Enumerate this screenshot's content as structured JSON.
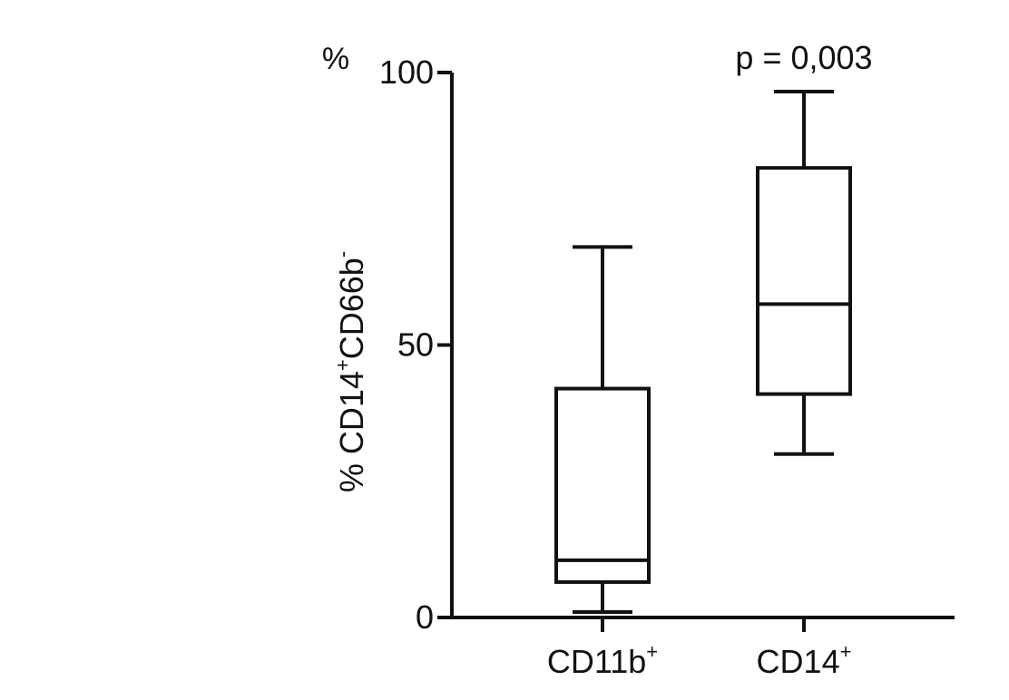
{
  "chart_data": {
    "type": "box",
    "categories": [
      "CD11b",
      "CD14"
    ],
    "category_superscripts": [
      "+",
      "+"
    ],
    "ylabel_parts": [
      {
        "text": "% CD14",
        "sup": false
      },
      {
        "text": "+",
        "sup": true
      },
      {
        "text": "CD66b",
        "sup": false
      },
      {
        "text": "-",
        "sup": true
      }
    ],
    "unit_label": "%",
    "ylim": [
      0,
      100
    ],
    "yticks": [
      0,
      50,
      100
    ],
    "ytick_labels": [
      "0",
      "50",
      "100"
    ],
    "boxes": [
      {
        "min": 1,
        "q1": 6.5,
        "median": 10.5,
        "q3": 42,
        "max": 68
      },
      {
        "min": 30,
        "q1": 41,
        "median": 57.5,
        "q3": 82.5,
        "max": 96.5
      }
    ],
    "annotation": "p = 0,003",
    "grid": false,
    "legend": "none",
    "axis_color": "#111111"
  }
}
